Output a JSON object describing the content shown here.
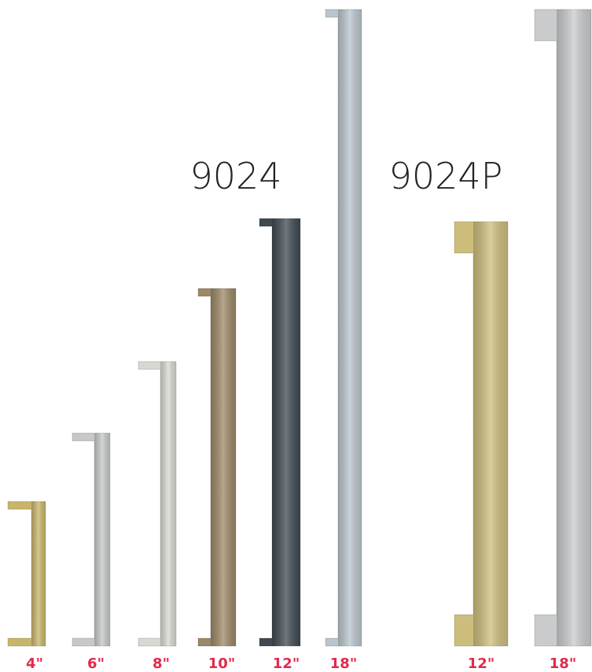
{
  "groups": [
    {
      "title": "9024",
      "items": [
        {
          "size": "4\""
        },
        {
          "size": "6\""
        },
        {
          "size": "8\""
        },
        {
          "size": "10\""
        },
        {
          "size": "12\""
        },
        {
          "size": "18\""
        }
      ]
    },
    {
      "title": "9024P",
      "items": [
        {
          "size": "12\""
        },
        {
          "size": "18\""
        }
      ]
    }
  ]
}
